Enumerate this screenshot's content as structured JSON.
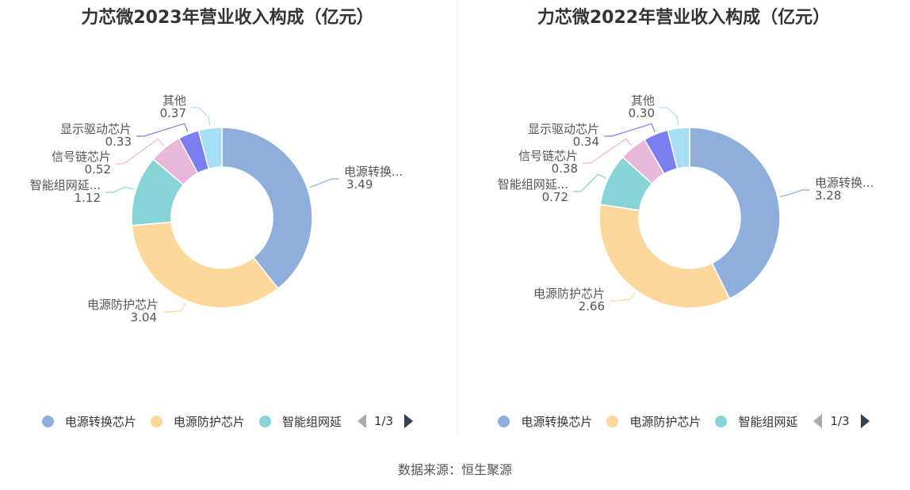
{
  "colors": [
    "#8eaedb",
    "#fdd89a",
    "#86d4d8",
    "#e9b7d8",
    "#7b7ef0",
    "#a6ddf7"
  ],
  "legend": {
    "items": [
      "电源转换芯片",
      "电源防护芯片",
      "智能组网延"
    ],
    "page": "1/3"
  },
  "source": "数据来源：恒生聚源",
  "chart_data": [
    {
      "type": "pie",
      "title": "力芯微2023年营业收入构成（亿元）",
      "slices": [
        {
          "label": "电源转换...",
          "value": 3.49,
          "display": "3.49"
        },
        {
          "label": "电源防护芯片",
          "value": 3.04,
          "display": "3.04"
        },
        {
          "label": "智能组网延...",
          "value": 1.12,
          "display": "1.12"
        },
        {
          "label": "信号链芯片",
          "value": 0.52,
          "display": "0.52"
        },
        {
          "label": "显示驱动芯片",
          "value": 0.33,
          "display": "0.33"
        },
        {
          "label": "其他",
          "value": 0.37,
          "display": "0.37"
        }
      ]
    },
    {
      "type": "pie",
      "title": "力芯微2022年营业收入构成（亿元）",
      "slices": [
        {
          "label": "电源转换...",
          "value": 3.28,
          "display": "3.28"
        },
        {
          "label": "电源防护芯片",
          "value": 2.66,
          "display": "2.66"
        },
        {
          "label": "智能组网延...",
          "value": 0.72,
          "display": "0.72"
        },
        {
          "label": "信号链芯片",
          "value": 0.38,
          "display": "0.38"
        },
        {
          "label": "显示驱动芯片",
          "value": 0.34,
          "display": "0.34"
        },
        {
          "label": "其他",
          "value": 0.3,
          "display": "0.30"
        }
      ]
    }
  ]
}
